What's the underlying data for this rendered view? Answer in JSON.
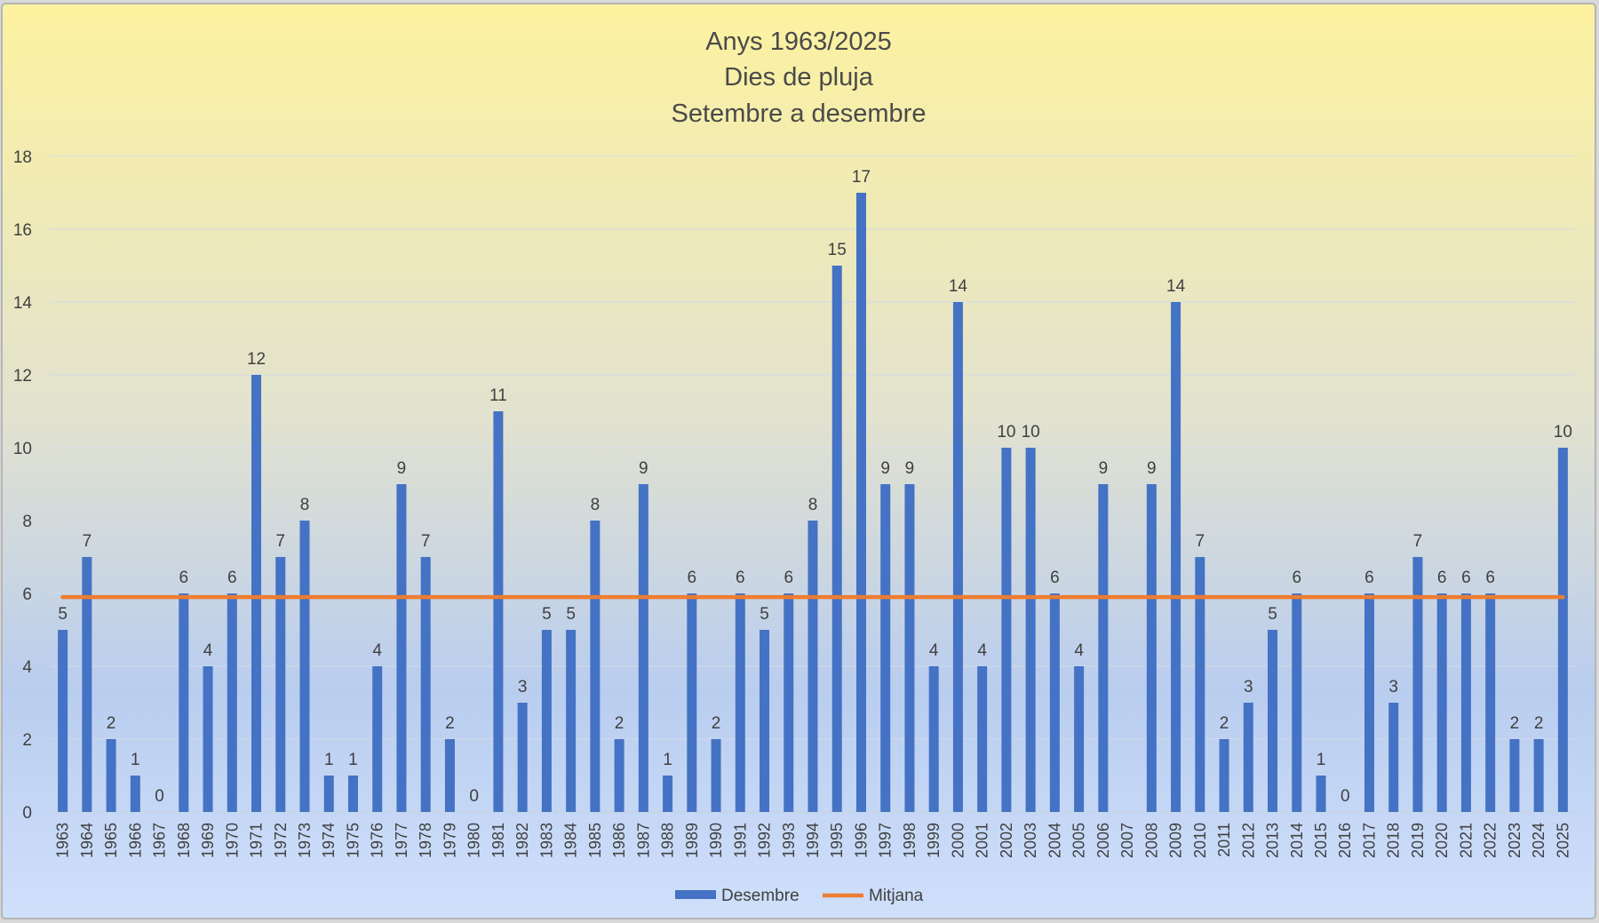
{
  "chart_data": {
    "type": "bar",
    "title_lines": [
      "Anys 1963/2025",
      "Dies de pluja",
      "Setembre a desembre"
    ],
    "xlabel": "",
    "ylabel": "",
    "ylim": [
      0,
      18
    ],
    "yticks": [
      "0",
      "2",
      "4",
      "6",
      "8",
      "10",
      "12",
      "14",
      "16",
      "18"
    ],
    "grid": true,
    "legend_position": "bottom",
    "categories": [
      "1963",
      "1964",
      "1965",
      "1966",
      "1967",
      "1968",
      "1969",
      "1970",
      "1971",
      "1972",
      "1973",
      "1974",
      "1975",
      "1976",
      "1977",
      "1978",
      "1979",
      "1980",
      "1981",
      "1982",
      "1983",
      "1984",
      "1985",
      "1986",
      "1987",
      "1988",
      "1989",
      "1990",
      "1991",
      "1992",
      "1993",
      "1994",
      "1995",
      "1996",
      "1997",
      "1998",
      "1999",
      "2000",
      "2001",
      "2002",
      "2003",
      "2004",
      "2005",
      "2006",
      "2007",
      "2008",
      "2009",
      "2010",
      "2011",
      "2012",
      "2013",
      "2014",
      "2015",
      "2016",
      "2017",
      "2018",
      "2019",
      "2020",
      "2021",
      "2022",
      "2023",
      "2024",
      "2025"
    ],
    "series": [
      {
        "name": "Desembre",
        "kind": "bar",
        "color": "#4472c4",
        "values": [
          5,
          7,
          2,
          1,
          0,
          6,
          4,
          6,
          12,
          7,
          8,
          1,
          1,
          4,
          9,
          7,
          2,
          0,
          11,
          3,
          5,
          5,
          8,
          2,
          9,
          1,
          6,
          2,
          6,
          5,
          6,
          8,
          15,
          17,
          9,
          9,
          4,
          14,
          4,
          10,
          10,
          6,
          4,
          9,
          null,
          9,
          14,
          7,
          2,
          3,
          5,
          6,
          1,
          0,
          6,
          3,
          7,
          6,
          6,
          6,
          2,
          2,
          10
        ],
        "data_labels": [
          "5",
          "7",
          "2",
          "1",
          "0",
          "6",
          "4",
          "6",
          "12",
          "7",
          "8",
          "1",
          "1",
          "4",
          "9",
          "7",
          "2",
          "0",
          "11",
          "3",
          "5",
          "5",
          "8",
          "2",
          "9",
          "1",
          "6",
          "2",
          "6",
          "5",
          "6",
          "8",
          "15",
          "17",
          "9",
          "9",
          "4",
          "14",
          "4",
          "10",
          "10",
          "6",
          "4",
          "9",
          "",
          "9",
          "14",
          "7",
          "2",
          "3",
          "5",
          "6",
          "1",
          "0",
          "6",
          "3",
          "7",
          "6",
          "6",
          "6",
          "2",
          "2",
          "10"
        ]
      },
      {
        "name": "Mitjana",
        "kind": "line",
        "color": "#ed7d31",
        "value": 5.9
      }
    ]
  }
}
